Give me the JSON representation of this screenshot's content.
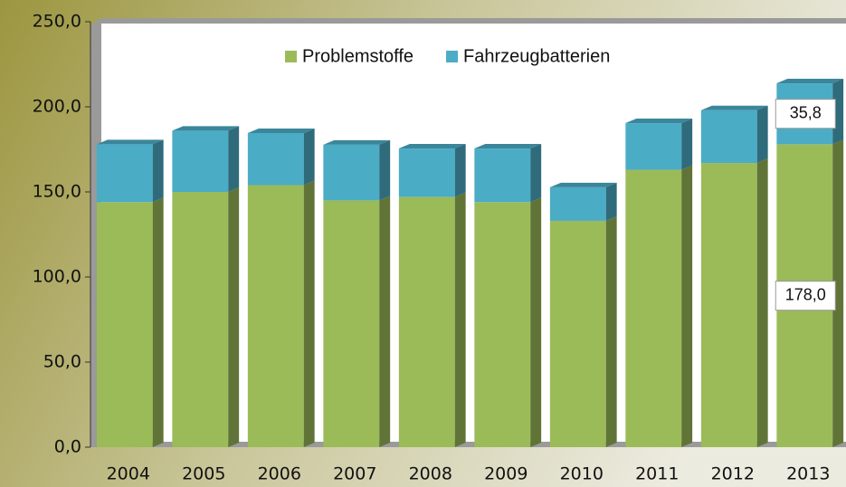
{
  "chart_data": {
    "type": "bar",
    "stacked": true,
    "categories": [
      "2004",
      "2005",
      "2006",
      "2007",
      "2008",
      "2009",
      "2010",
      "2011",
      "2012",
      "2013"
    ],
    "series": [
      {
        "name": "Problemstoffe",
        "color": "#9bbb59",
        "values": [
          144,
          150,
          154,
          145,
          147,
          144,
          133,
          163,
          167,
          178.0
        ],
        "value_labels": [
          null,
          null,
          null,
          null,
          null,
          null,
          null,
          null,
          null,
          "178,0"
        ]
      },
      {
        "name": "Fahrzeugbatterien",
        "color": "#4bacc6",
        "values": [
          34,
          36,
          30.6,
          32.7,
          28.5,
          31.5,
          19.7,
          27.4,
          31,
          35.8
        ],
        "value_labels": [
          null,
          null,
          null,
          null,
          null,
          null,
          null,
          null,
          null,
          "35,8"
        ]
      }
    ],
    "ylim": [
      0,
      250
    ],
    "yticks": [
      {
        "value": 0,
        "label": "0,0"
      },
      {
        "value": 50,
        "label": "50,0"
      },
      {
        "value": 100,
        "label": "100,0"
      },
      {
        "value": 150,
        "label": "150,0"
      },
      {
        "value": 200,
        "label": "200,0"
      },
      {
        "value": 250,
        "label": "250,0"
      }
    ],
    "legend": "top"
  }
}
